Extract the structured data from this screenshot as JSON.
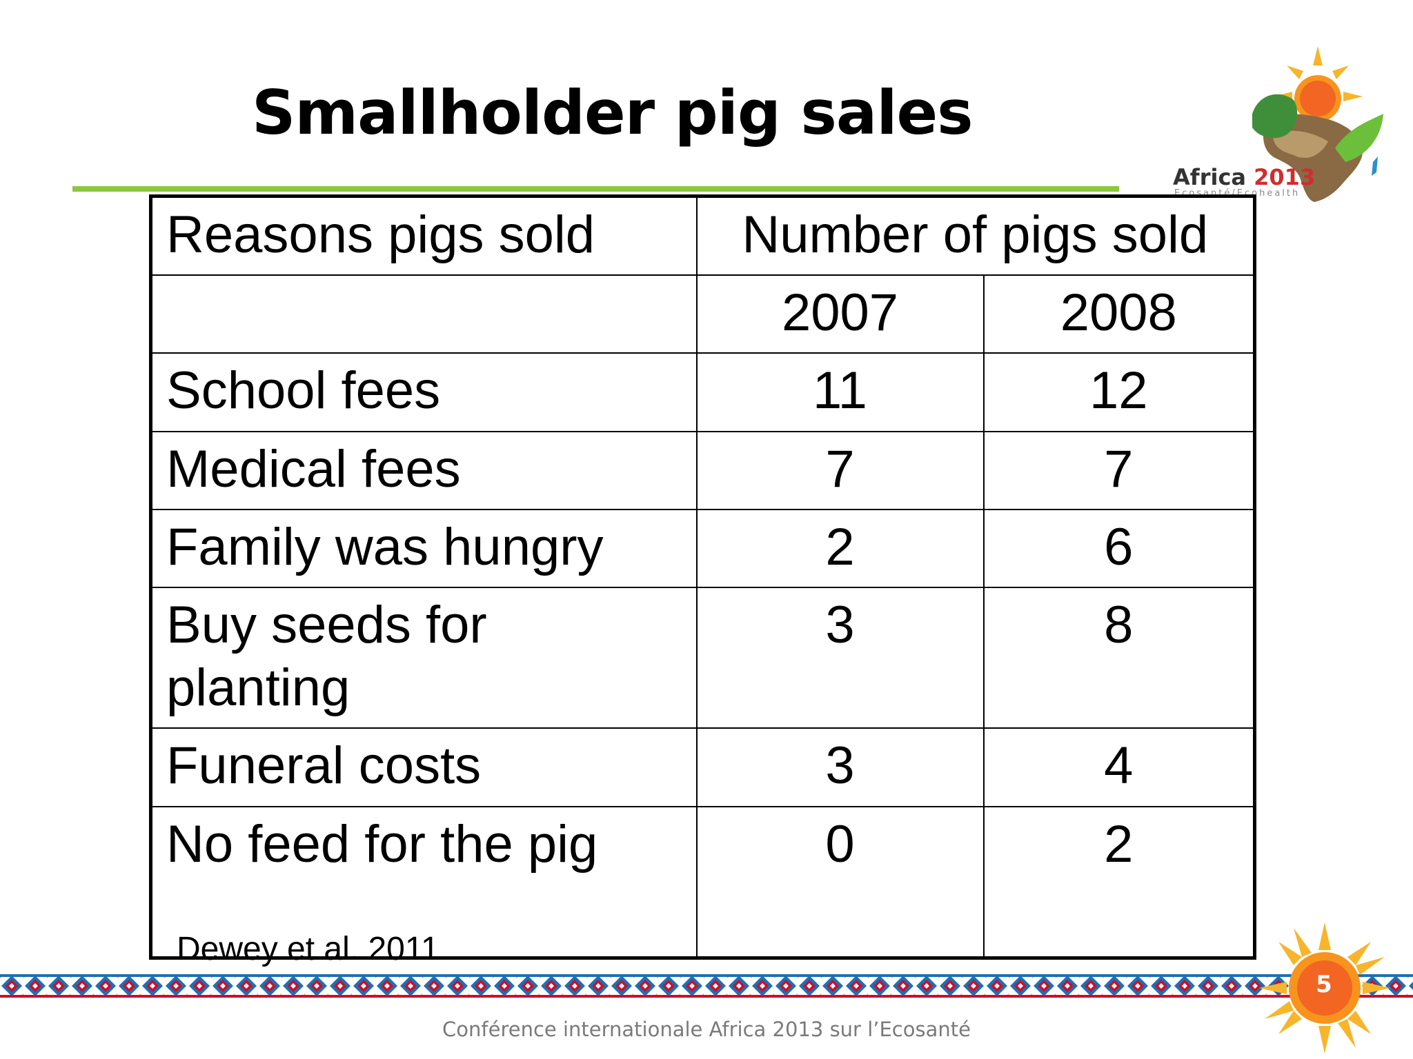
{
  "slide": {
    "title": "Smallholder pig sales",
    "page_number": "5",
    "footer": "Conférence internationale Africa 2013 sur l’Ecosanté",
    "citation": "Dewey et al. 2011"
  },
  "logo": {
    "main": "Africa ",
    "year": "2013",
    "sub": "Ecosanté/Ecohealth",
    "icon": "africa-map-sun-logo-icon"
  },
  "colors": {
    "title_rule": "#8dc63f",
    "sun_orange": "#f7941d",
    "band_blue": "#1f6fb2",
    "band_red": "#c8102e"
  },
  "table": {
    "header": {
      "reason_col": "Reasons pigs sold",
      "number_col": "Number of pigs sold",
      "blank": "",
      "year1": "2007",
      "year2": "2008"
    },
    "rows": [
      {
        "reason": "School fees",
        "y2007": "11",
        "y2008": "12"
      },
      {
        "reason": "Medical fees",
        "y2007": "7",
        "y2008": "7"
      },
      {
        "reason": "Family was hungry",
        "y2007": "2",
        "y2008": "6"
      },
      {
        "reason": "Buy seeds for planting",
        "y2007": "3",
        "y2008": "8"
      },
      {
        "reason": "Funeral costs",
        "y2007": "3",
        "y2008": "4"
      },
      {
        "reason": "No feed for the pig",
        "y2007": "0",
        "y2008": "2"
      }
    ]
  }
}
